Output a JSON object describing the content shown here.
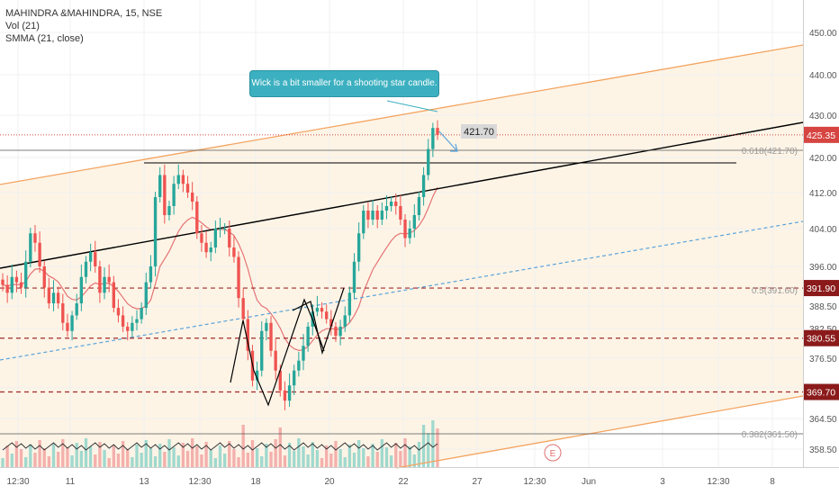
{
  "legend": {
    "symbol": "MAHINDRA &MAHINDRA, 15, NSE",
    "vol": "Vol (21)",
    "smma": "SMMA (21, close)"
  },
  "callout": "Wick is a bit smaller for a shooting star candle.",
  "price_tag": "421.70",
  "colors": {
    "up": "#26a69a",
    "down": "#ef5350",
    "smma": "#e57373",
    "channel": "#f4a460",
    "channel_fill": "#fdf4e6",
    "trend": "#000000",
    "dashed_blue": "#5ba3d9",
    "support": "#a52a2a",
    "badge": "#8b1a1a",
    "current": "#d64541",
    "callout": "#3cb0c0"
  },
  "chart_data": {
    "type": "candlestick",
    "y_axis": {
      "range": [
        355,
        455
      ],
      "ticks": [
        "450.00",
        "440.00",
        "430.00",
        "420.00",
        "412.00",
        "404.00",
        "396.00",
        "388.50",
        "382.50",
        "376.50",
        "370.50",
        "364.50",
        "358.50"
      ]
    },
    "x_axis": {
      "ticks": [
        "12:30",
        "11",
        "13",
        "12:30",
        "18",
        "20",
        "22",
        "27",
        "12:30",
        "Jun",
        "3",
        "12:30",
        "8"
      ]
    },
    "price_badges": [
      {
        "label": "425.35",
        "value": 425.35,
        "kind": "current"
      },
      {
        "label": "391.90",
        "value": 391.9,
        "kind": "level"
      },
      {
        "label": "380.55",
        "value": 380.55,
        "kind": "level"
      },
      {
        "label": "369.70",
        "value": 369.7,
        "kind": "level"
      }
    ],
    "fib_labels": [
      {
        "label": "0.618(421.70)",
        "value": 421.7
      },
      {
        "label": "0.5(391.60)",
        "value": 391.6
      },
      {
        "label": "0.382(361.50)",
        "value": 361.5
      }
    ],
    "event_marker": "E",
    "closes": [
      392.5,
      391,
      394,
      393,
      392,
      397,
      403,
      401,
      396,
      392,
      389,
      391,
      389,
      384,
      382,
      386,
      389,
      394,
      397,
      399,
      396,
      391,
      394,
      393,
      388,
      386,
      383,
      382,
      384,
      385,
      388,
      393,
      396,
      411,
      416,
      407,
      409,
      414,
      416,
      414,
      412,
      410,
      403,
      401,
      399,
      400,
      404,
      404,
      404,
      400,
      398,
      390,
      385,
      378,
      372,
      374,
      382,
      384,
      378,
      374,
      370,
      368,
      371,
      374,
      376,
      379,
      383,
      387,
      388,
      387,
      385,
      383,
      381,
      383,
      386,
      391,
      397,
      403,
      408,
      406,
      408,
      406,
      408,
      409,
      410,
      409,
      406,
      402,
      404,
      407,
      411,
      416,
      422,
      427,
      425.35
    ]
  }
}
